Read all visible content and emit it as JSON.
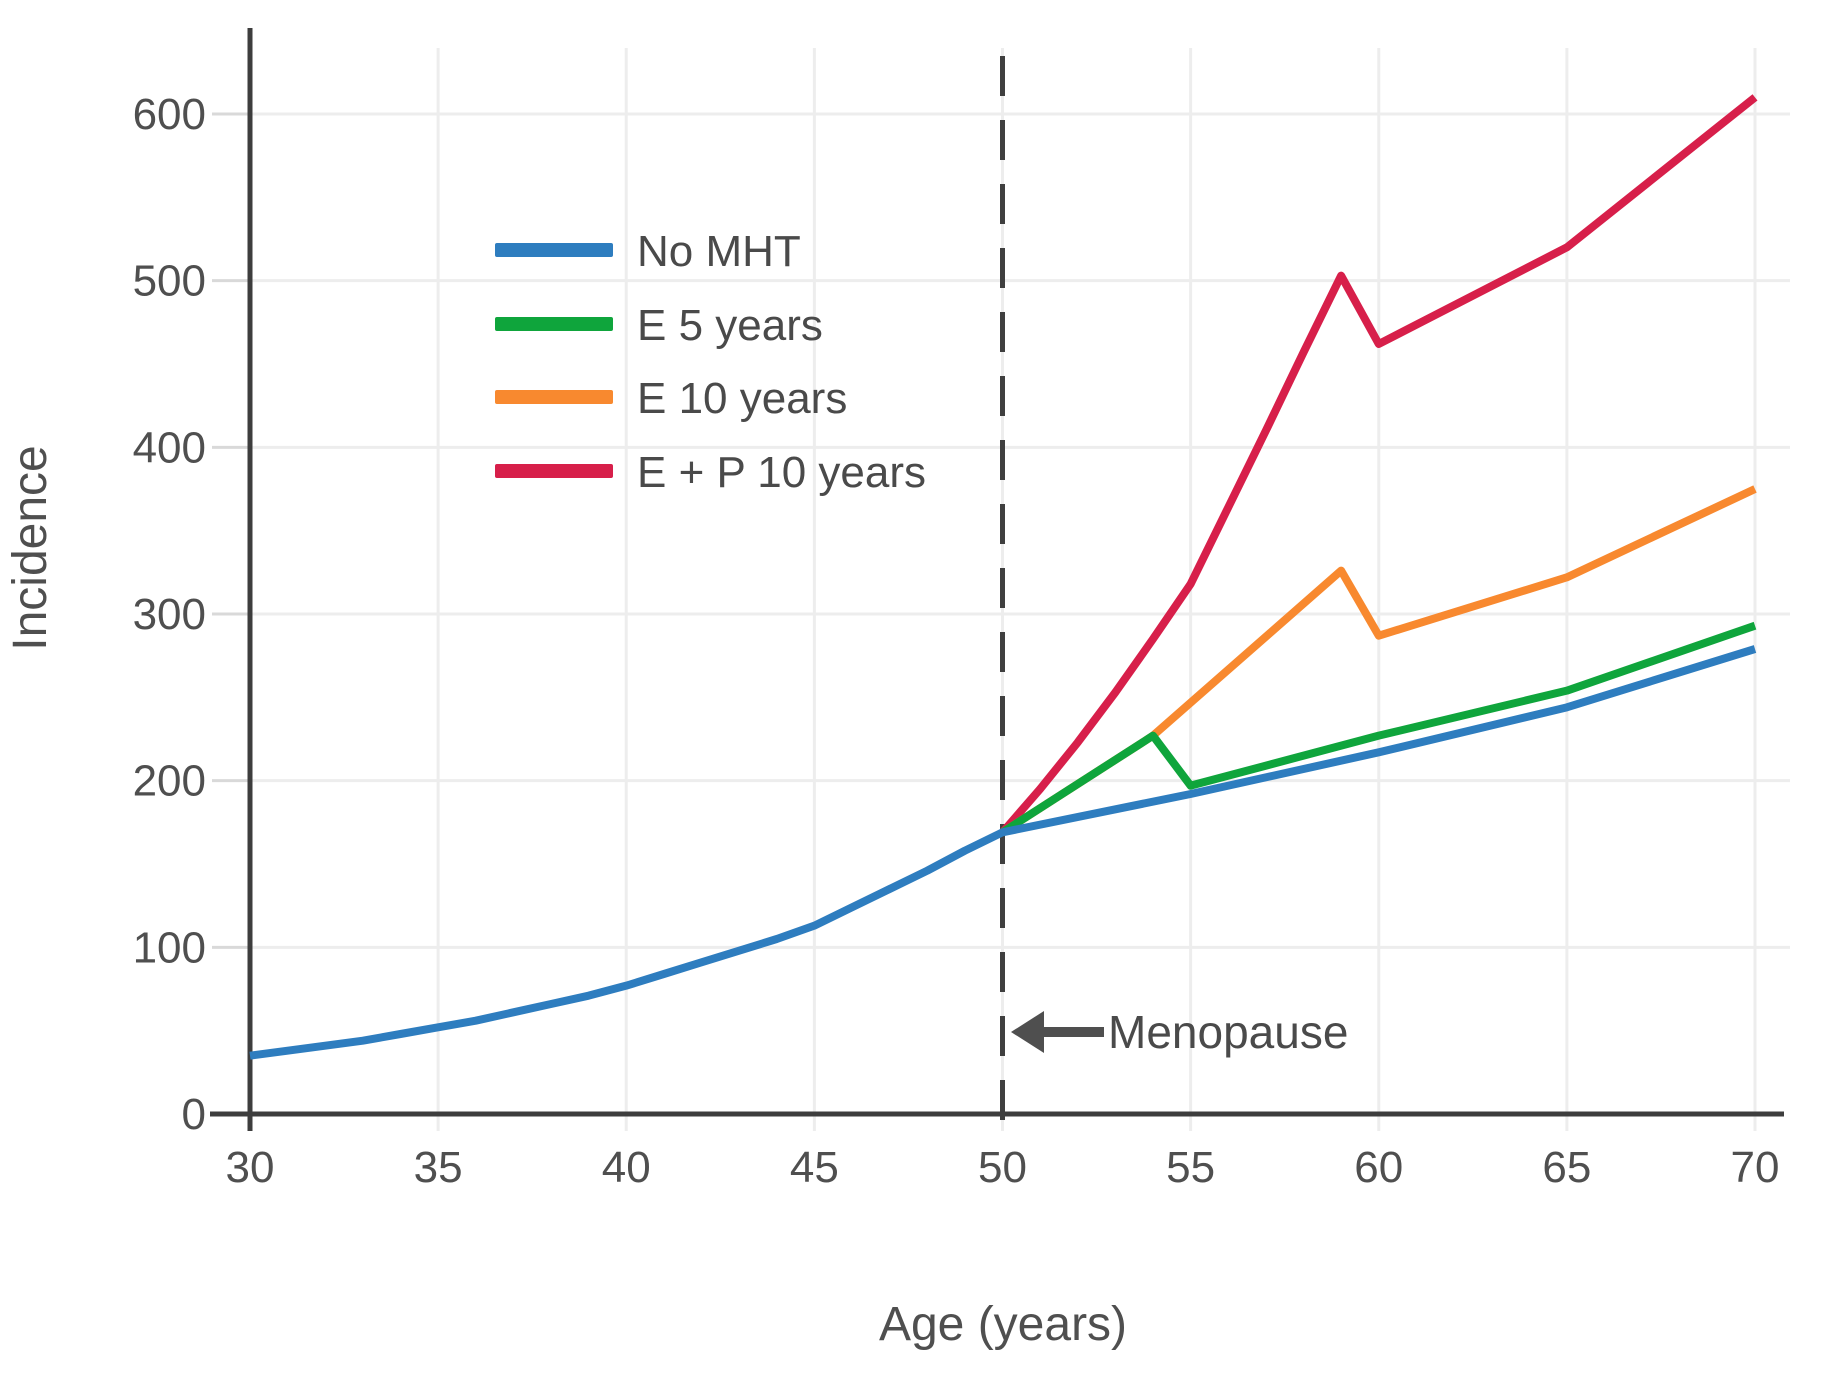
{
  "chart_data": {
    "type": "line",
    "title": "",
    "xlabel": "Age (years)",
    "ylabel": "Incidence",
    "xlim": [
      30,
      70
    ],
    "ylim": [
      0,
      650
    ],
    "x_ticks": [
      30,
      35,
      40,
      45,
      50,
      55,
      60,
      65,
      70
    ],
    "y_ticks": [
      0,
      100,
      200,
      300,
      400,
      500,
      600
    ],
    "grid": true,
    "legend_position": "upper-left-inside",
    "menopause_line": {
      "x": 50,
      "style": "dashed",
      "color": "#3f3f3f"
    },
    "annotation": {
      "text": "Menopause",
      "arrow_direction": "left",
      "points_to_x": 50,
      "y_value": 48
    },
    "series": [
      {
        "name": "No MHT",
        "color": "#2e7dbf",
        "points": [
          [
            30,
            35
          ],
          [
            31,
            38
          ],
          [
            32,
            41
          ],
          [
            33,
            44
          ],
          [
            34,
            48
          ],
          [
            35,
            52
          ],
          [
            36,
            56
          ],
          [
            37,
            61
          ],
          [
            38,
            66
          ],
          [
            39,
            71
          ],
          [
            40,
            77
          ],
          [
            41,
            84
          ],
          [
            42,
            91
          ],
          [
            43,
            98
          ],
          [
            44,
            105
          ],
          [
            45,
            113
          ],
          [
            46,
            124
          ],
          [
            47,
            135
          ],
          [
            48,
            146
          ],
          [
            49,
            158
          ],
          [
            50,
            169
          ],
          [
            55,
            192
          ],
          [
            60,
            217
          ],
          [
            65,
            244
          ],
          [
            70,
            279
          ]
        ]
      },
      {
        "name": "E 5 years",
        "color": "#0fa53c",
        "points": [
          [
            50,
            169
          ],
          [
            54,
            227
          ],
          [
            55,
            197
          ],
          [
            60,
            227
          ],
          [
            65,
            254
          ],
          [
            70,
            293
          ]
        ]
      },
      {
        "name": "E 10 years",
        "color": "#f8892f",
        "points": [
          [
            50,
            169
          ],
          [
            54,
            227
          ],
          [
            59,
            326
          ],
          [
            60,
            287
          ],
          [
            65,
            322
          ],
          [
            70,
            375
          ]
        ]
      },
      {
        "name": "E + P 10 years",
        "color": "#d71f4a",
        "points": [
          [
            50,
            169
          ],
          [
            51,
            195
          ],
          [
            52,
            223
          ],
          [
            53,
            253
          ],
          [
            54,
            285
          ],
          [
            55,
            318
          ],
          [
            56,
            364
          ],
          [
            57,
            410
          ],
          [
            58,
            457
          ],
          [
            59,
            503
          ],
          [
            60,
            462
          ],
          [
            65,
            520
          ],
          [
            70,
            610
          ]
        ]
      }
    ],
    "colors": {
      "axis": "#3d3d3d",
      "grid": "#ededed",
      "tick_mark": "#d9d9d9",
      "tick_label": "#4f4f4f",
      "text": "#4a4a4a",
      "background": "#ffffff"
    }
  }
}
